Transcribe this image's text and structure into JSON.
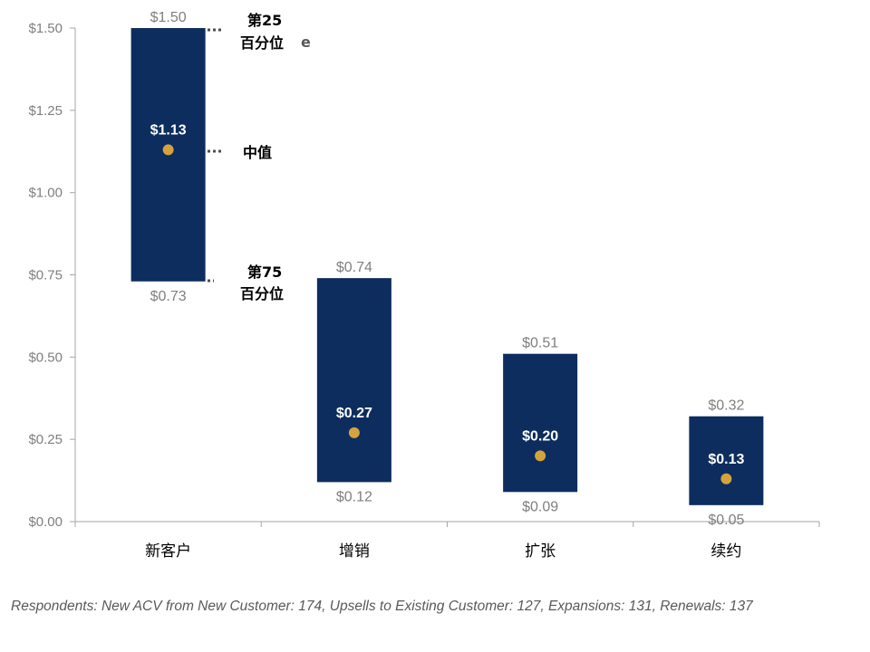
{
  "chart_data": {
    "type": "box",
    "categories": [
      "新客户",
      "增销",
      "扩张",
      "续约"
    ],
    "series": [
      {
        "name": "第25 百分位",
        "values": [
          1.5,
          0.74,
          0.51,
          0.32
        ]
      },
      {
        "name": "中值",
        "values": [
          1.13,
          0.27,
          0.2,
          0.13
        ]
      },
      {
        "name": "第75 百分位",
        "values": [
          0.73,
          0.12,
          0.09,
          0.05
        ]
      }
    ],
    "high_labels": [
      "$1.50",
      "$0.74",
      "$0.51",
      "$0.32"
    ],
    "median_labels": [
      "$1.13",
      "$0.27",
      "$0.20",
      "$0.13"
    ],
    "low_labels": [
      "$0.73",
      "$0.12",
      "$0.09",
      "$0.05"
    ],
    "y_ticks": [
      0,
      0.25,
      0.5,
      0.75,
      1.0,
      1.25,
      1.5
    ],
    "y_tick_labels": [
      "$0.00",
      "$0.25",
      "$0.50",
      "$0.75",
      "$1.00",
      "$1.25",
      "$1.50"
    ],
    "ylim": [
      0,
      1.5
    ],
    "legend_annotations": {
      "p25_line1": "第25",
      "p25_line2": "百分位",
      "p25_suffix": "e",
      "median": "中值",
      "p75_line1": "第75",
      "p75_line2": "百分位"
    },
    "colors": {
      "box": "#0c2d5e",
      "median_dot": "#d4a33c",
      "axis": "#a6a6a6",
      "leader": "#4d4d4d"
    },
    "grid": false
  },
  "footnote": "Respondents: New ACV from New Customer: 174, Upsells to Existing Customer: 127, Expansions: 131, Renewals: 137"
}
